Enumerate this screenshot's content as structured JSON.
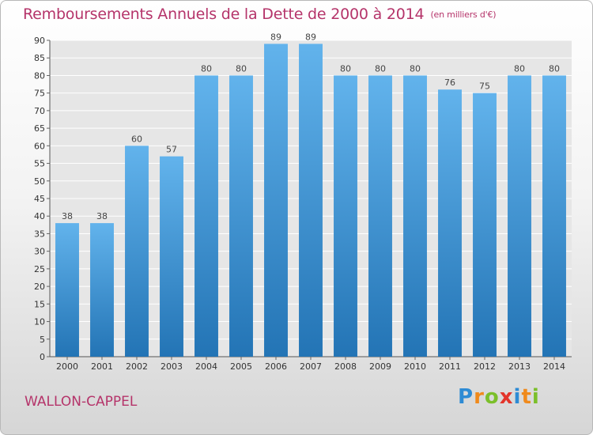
{
  "title": "Remboursements Annuels de la Dette de 2000 à 2014",
  "unit_note": "(en milliers d'€)",
  "commune": "WALLON-CAPPEL",
  "logo": {
    "letters": [
      "P",
      "r",
      "o",
      "x",
      "i",
      "t",
      "i"
    ],
    "colors": [
      "#2e8bd4",
      "#f08a1c",
      "#7bbf2a",
      "#e3352b",
      "#2e8bd4",
      "#f08a1c",
      "#7bbf2a"
    ]
  },
  "chart_data": {
    "type": "bar",
    "title": "Remboursements Annuels de la Dette de 2000 à 2014",
    "xlabel": "",
    "ylabel": "",
    "ylim": [
      0,
      90
    ],
    "ytick_step": 5,
    "grid": "horizontal",
    "categories": [
      "2000",
      "2001",
      "2002",
      "2003",
      "2004",
      "2005",
      "2006",
      "2007",
      "2008",
      "2009",
      "2010",
      "2011",
      "2012",
      "2013",
      "2014"
    ],
    "values": [
      38,
      38,
      60,
      57,
      80,
      80,
      89,
      89,
      80,
      80,
      80,
      76,
      75,
      80,
      80
    ],
    "bar_color_top": "#62b3ec",
    "bar_color_bottom": "#2374b5",
    "grid_color": "#ffffff"
  }
}
